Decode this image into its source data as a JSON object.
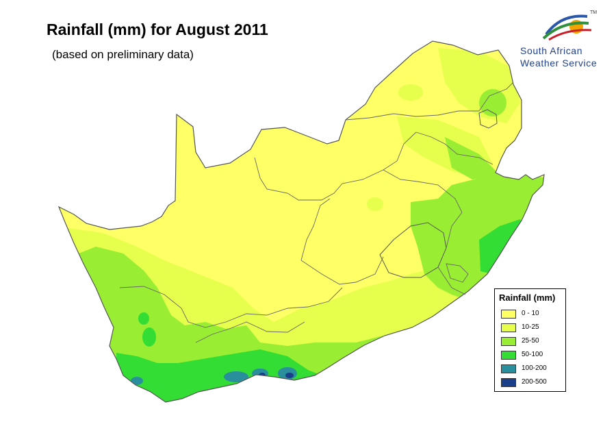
{
  "title": "Rainfall (mm) for August 2011",
  "subtitle": "(based on preliminary data)",
  "logo": {
    "line1": "South African",
    "line2": "Weather Service",
    "trademark": "TM"
  },
  "legend": {
    "title": "Rainfall (mm)",
    "classes": [
      {
        "label": "0 - 10",
        "color": "#ffff66"
      },
      {
        "label": "10-25",
        "color": "#e6ff4d"
      },
      {
        "label": "25-50",
        "color": "#99ee33"
      },
      {
        "label": "50-100",
        "color": "#33dd33"
      },
      {
        "label": "100-200",
        "color": "#2a8f9c"
      },
      {
        "label": "200-500",
        "color": "#1a3f8a"
      }
    ]
  },
  "colors": {
    "background": "#ffffff",
    "border": "#555555"
  }
}
